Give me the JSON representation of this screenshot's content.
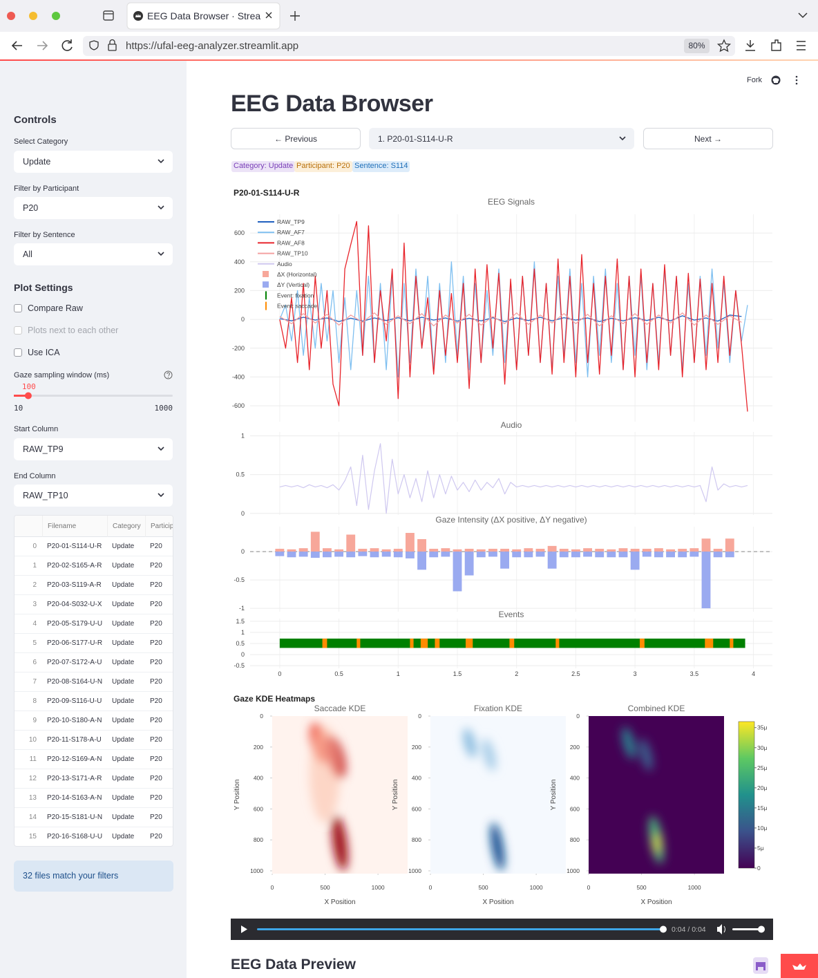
{
  "browser": {
    "tab_title": "EEG Data Browser · Streamlit",
    "url": "https://ufal-eeg-analyzer.streamlit.app",
    "zoom": "80%"
  },
  "header": {
    "fork": "Fork"
  },
  "sidebar": {
    "controls": "Controls",
    "category": {
      "label": "Select Category",
      "value": "Update"
    },
    "participant": {
      "label": "Filter by Participant",
      "value": "P20"
    },
    "sentence": {
      "label": "Filter by Sentence",
      "value": "All"
    },
    "plot_settings": "Plot Settings",
    "checkboxes": [
      "Compare Raw",
      "Plots next to each other",
      "Use ICA"
    ],
    "slider": {
      "label": "Gaze sampling window (ms)",
      "value": 100,
      "min": 10,
      "max": 1000
    },
    "start_column": {
      "label": "Start Column",
      "value": "RAW_TP9"
    },
    "end_column": {
      "label": "End Column",
      "value": "RAW_TP10"
    },
    "table": {
      "columns": [
        "Filename",
        "Category",
        "Participant"
      ],
      "rows": [
        [
          0,
          "P20-01-S114-U-R",
          "Update",
          "P20"
        ],
        [
          1,
          "P20-02-S165-A-R",
          "Update",
          "P20"
        ],
        [
          2,
          "P20-03-S119-A-R",
          "Update",
          "P20"
        ],
        [
          3,
          "P20-04-S032-U-X",
          "Update",
          "P20"
        ],
        [
          4,
          "P20-05-S179-U-U",
          "Update",
          "P20"
        ],
        [
          5,
          "P20-06-S177-U-R",
          "Update",
          "P20"
        ],
        [
          6,
          "P20-07-S172-A-U",
          "Update",
          "P20"
        ],
        [
          7,
          "P20-08-S164-U-N",
          "Update",
          "P20"
        ],
        [
          8,
          "P20-09-S116-U-U",
          "Update",
          "P20"
        ],
        [
          9,
          "P20-10-S180-A-N",
          "Update",
          "P20"
        ],
        [
          10,
          "P20-11-S178-A-U",
          "Update",
          "P20"
        ],
        [
          11,
          "P20-12-S169-A-N",
          "Update",
          "P20"
        ],
        [
          12,
          "P20-13-S171-A-R",
          "Update",
          "P20"
        ],
        [
          13,
          "P20-14-S163-A-N",
          "Update",
          "P20"
        ],
        [
          14,
          "P20-15-S181-U-N",
          "Update",
          "P20"
        ],
        [
          15,
          "P20-16-S168-U-U",
          "Update",
          "P20"
        ]
      ]
    },
    "info": "32 files match your filters"
  },
  "main": {
    "title": "EEG Data Browser",
    "prev": "← Previous",
    "select": "1. P20-01-S114-U-R",
    "next": "Next →",
    "tags": [
      "Category: Update",
      "Participant: P20",
      "Sentence: S114"
    ],
    "figure": {
      "title": "P20-01-S114-U-R",
      "xlim": [
        -0.25,
        4.16
      ],
      "xticks": [
        0,
        0.5,
        1,
        1.5,
        2,
        2.5,
        3,
        3.5,
        4
      ],
      "eeg": {
        "title": "EEG Signals",
        "ylim": [
          -710,
          730
        ],
        "yticks": [
          -600,
          -400,
          -200,
          0,
          200,
          400,
          600
        ],
        "x": [
          0,
          0.05,
          0.1,
          0.15,
          0.2,
          0.25,
          0.3,
          0.35,
          0.4,
          0.45,
          0.5,
          0.55,
          0.6,
          0.65,
          0.7,
          0.75,
          0.8,
          0.85,
          0.9,
          0.95,
          1,
          1.05,
          1.1,
          1.15,
          1.2,
          1.25,
          1.3,
          1.35,
          1.4,
          1.45,
          1.5,
          1.55,
          1.6,
          1.65,
          1.7,
          1.75,
          1.8,
          1.85,
          1.9,
          1.95,
          2,
          2.05,
          2.1,
          2.15,
          2.2,
          2.25,
          2.3,
          2.35,
          2.4,
          2.45,
          2.5,
          2.55,
          2.6,
          2.65,
          2.7,
          2.75,
          2.8,
          2.85,
          2.9,
          2.95,
          3,
          3.05,
          3.1,
          3.15,
          3.2,
          3.25,
          3.3,
          3.35,
          3.4,
          3.45,
          3.5,
          3.55,
          3.6,
          3.65,
          3.7,
          3.75,
          3.8,
          3.85,
          3.9,
          3.95
        ],
        "x_coarse": [
          0,
          0.1,
          0.2,
          0.3,
          0.4,
          0.5,
          0.6,
          0.7,
          0.8,
          0.9,
          1,
          1.1,
          1.2,
          1.3,
          1.4,
          1.5,
          1.6,
          1.7,
          1.8,
          1.9,
          2,
          2.1,
          2.2,
          2.3,
          2.4,
          2.5,
          2.6,
          2.7,
          2.8,
          2.9,
          3,
          3.1,
          3.2,
          3.3,
          3.4,
          3.5,
          3.6,
          3.7,
          3.8,
          3.9
        ],
        "series": [
          {
            "name": "RAW_TP9",
            "color": "#1f5fbf",
            "values": [
              5,
              -10,
              15,
              -5,
              10,
              -15,
              8,
              -12,
              10,
              -8,
              12,
              -10,
              15,
              -5,
              10,
              -12,
              8,
              -10,
              12,
              -15,
              10,
              -8,
              15,
              -10,
              12,
              -5,
              10,
              -15,
              8,
              -10,
              12,
              -8,
              15,
              -10,
              25,
              -5,
              10,
              -12,
              30,
              20
            ]
          },
          {
            "name": "RAW_AF7",
            "color": "#7ebff0",
            "values": [
              0,
              100,
              -150,
              200,
              -250,
              150,
              -200,
              250,
              -150,
              200,
              -300,
              150,
              -350,
              200,
              -250,
              300,
              -300,
              250,
              -350,
              300,
              -400,
              250,
              -300,
              350,
              -200,
              300,
              -350,
              250,
              -300,
              400,
              -250,
              300,
              -350,
              250,
              -300,
              200,
              -250,
              350,
              -300,
              250,
              -350,
              300,
              -250,
              400,
              -300,
              250,
              -350,
              300,
              -250,
              350,
              -300,
              250,
              -400,
              300,
              -250,
              350,
              -300,
              250,
              -350,
              300,
              -250,
              300,
              -350,
              250,
              -300,
              350,
              -250,
              300,
              -350,
              250,
              -300,
              300,
              -250,
              350,
              -200,
              250,
              -300,
              200,
              -150,
              100
            ]
          },
          {
            "name": "RAW_AF8",
            "color": "#e8242b",
            "values": [
              0,
              -200,
              150,
              -300,
              250,
              -350,
              300,
              -200,
              200,
              -450,
              -600,
              350,
              520,
              680,
              -250,
              650,
              -300,
              200,
              -150,
              350,
              -550,
              530,
              -400,
              300,
              -200,
              150,
              -380,
              200,
              -250,
              180,
              -300,
              250,
              -480,
              350,
              -300,
              380,
              -200,
              320,
              -450,
              280,
              -350,
              300,
              -250,
              350,
              -300,
              250,
              -380,
              420,
              -300,
              300,
              -400,
              450,
              -300,
              250,
              -380,
              300,
              -250,
              420,
              -350,
              300,
              -400,
              350,
              -300,
              250,
              -350,
              380,
              -250,
              300,
              -400,
              320,
              -300,
              280,
              -350,
              250,
              -300,
              300,
              -250,
              200,
              -180,
              -640
            ]
          },
          {
            "name": "RAW_TP10",
            "color": "#f4a0a0",
            "values": [
              20,
              -30,
              40,
              -25,
              35,
              -40,
              30,
              -20,
              45,
              -35,
              25,
              -30,
              40,
              -45,
              30,
              -25,
              35,
              -40,
              20,
              -30,
              45,
              -35,
              30,
              -25,
              40,
              -30,
              35,
              -45,
              25,
              -30,
              40,
              -35,
              30,
              -25,
              45,
              -40,
              30,
              -35,
              25,
              -20
            ]
          }
        ]
      },
      "audio": {
        "title": "Audio",
        "name": "Audio",
        "color": "#cfc8f0",
        "ylim": [
          -0.02,
          1.05
        ],
        "yticks": [
          0,
          0.5,
          1
        ],
        "values": [
          0.34,
          0.36,
          0.34,
          0.36,
          0.33,
          0.37,
          0.34,
          0.36,
          0.33,
          0.37,
          0.3,
          0.42,
          0.6,
          0.1,
          0.75,
          0.05,
          0.55,
          0.9,
          0,
          0.7,
          0.25,
          0.5,
          0.2,
          0.45,
          0.15,
          0.55,
          0.2,
          0.5,
          0.25,
          0.48,
          0.3,
          0.4,
          0.28,
          0.43,
          0.3,
          0.4,
          0.33,
          0.45,
          0.25,
          0.4,
          0.34,
          0.36,
          0.34,
          0.36,
          0.34,
          0.36,
          0.34,
          0.36,
          0.34,
          0.36,
          0.34,
          0.36,
          0.34,
          0.36,
          0.34,
          0.36,
          0.34,
          0.36,
          0.34,
          0.36,
          0.34,
          0.36,
          0.34,
          0.36,
          0.34,
          0.36,
          0.34,
          0.36,
          0.34,
          0.36,
          0.34,
          0.36,
          0.15,
          0.6,
          0.3,
          0.38,
          0.34,
          0.36,
          0.34,
          0.36
        ]
      },
      "gaze": {
        "title": "Gaze Intensity (ΔX positive, ΔY negative)",
        "ylim": [
          -1.06,
          0.44
        ],
        "yticks": [
          -1,
          -0.5,
          0
        ],
        "x": [
          0,
          0.1,
          0.2,
          0.3,
          0.4,
          0.5,
          0.6,
          0.7,
          0.8,
          0.9,
          1,
          1.1,
          1.2,
          1.3,
          1.4,
          1.5,
          1.6,
          1.7,
          1.8,
          1.9,
          2,
          2.1,
          2.2,
          2.3,
          2.4,
          2.5,
          2.6,
          2.7,
          2.8,
          2.9,
          3,
          3.1,
          3.2,
          3.3,
          3.4,
          3.5,
          3.6,
          3.7,
          3.8
        ],
        "series": [
          {
            "name": "ΔX (Horizontal)",
            "color": "#f7a79a",
            "values": [
              0.05,
              0.04,
              0.06,
              0.35,
              0.06,
              0.04,
              0.3,
              0.05,
              0.06,
              0.04,
              0.05,
              0.33,
              0.22,
              0.05,
              0.06,
              0.04,
              0.05,
              0.04,
              0.05,
              0.05,
              0.04,
              0.06,
              0.05,
              0.1,
              0.05,
              0.04,
              0.06,
              0.05,
              0.04,
              0.06,
              0.05,
              0.05,
              0.06,
              0.04,
              0.05,
              0.06,
              0.23,
              0.05,
              0.23
            ]
          },
          {
            "name": "ΔY (Vertical)",
            "color": "#9aaaf0",
            "values": [
              -0.08,
              -0.1,
              -0.09,
              -0.11,
              -0.1,
              -0.09,
              -0.1,
              -0.08,
              -0.1,
              -0.09,
              -0.1,
              -0.12,
              -0.32,
              -0.1,
              -0.09,
              -0.7,
              -0.42,
              -0.1,
              -0.09,
              -0.3,
              -0.1,
              -0.1,
              -0.09,
              -0.3,
              -0.1,
              -0.1,
              -0.09,
              -0.1,
              -0.1,
              -0.1,
              -0.32,
              -0.09,
              -0.1,
              -0.1,
              -0.1,
              -0.09,
              -1,
              -0.1,
              -0.1
            ]
          }
        ]
      },
      "events": {
        "title": "Events",
        "ylim": [
          -0.62,
          1.62
        ],
        "yticks": [
          -0.5,
          0,
          0.5,
          1,
          1.5
        ],
        "band": [
          0.3,
          0.72
        ],
        "fixation": {
          "name": "Event: fixation",
          "color": "#008000",
          "start": [
            0
          ],
          "end": [
            3.93
          ]
        },
        "saccade": {
          "name": "Event: saccade",
          "color": "#ff8c00",
          "start": [
            0.36,
            0.65,
            1.1,
            1.19,
            1.31,
            1.57,
            1.94,
            2.33,
            3.04,
            3.59,
            3.8
          ],
          "end": [
            0.4,
            0.68,
            1.13,
            1.25,
            1.35,
            1.63,
            1.98,
            2.36,
            3.08,
            3.66,
            3.83
          ]
        }
      }
    },
    "kde": {
      "title": "Gaze KDE Heatmaps",
      "xlim": [
        0,
        1280
      ],
      "ylim": [
        0,
        1018
      ],
      "xticks": [
        0,
        500,
        1000
      ],
      "yticks": [
        0,
        200,
        400,
        600,
        800,
        1000
      ],
      "panels": [
        {
          "title": "Saccade KDE",
          "xlabel": "X Position",
          "ylabel": "Y Position"
        },
        {
          "title": "Fixation KDE",
          "xlabel": "X Position",
          "ylabel": "Y Position"
        },
        {
          "title": "Combined KDE",
          "xlabel": "X Position",
          "ylabel": "Y Position"
        }
      ],
      "colorbar": {
        "range": [
          0,
          3.65e-05
        ],
        "ticks": [
          {
            "value": 0,
            "label": "0"
          },
          {
            "value": 5e-06,
            "label": "5μ"
          },
          {
            "value": 1e-05,
            "label": "10μ"
          },
          {
            "value": 1.5e-05,
            "label": "15μ"
          },
          {
            "value": 2e-05,
            "label": "20μ"
          },
          {
            "value": 2.5e-05,
            "label": "25μ"
          },
          {
            "value": 3e-05,
            "label": "30μ"
          },
          {
            "value": 3.5e-05,
            "label": "35μ"
          }
        ]
      }
    },
    "player": {
      "time": "0:04 / 0:04"
    },
    "preview": "EEG Data Preview"
  }
}
